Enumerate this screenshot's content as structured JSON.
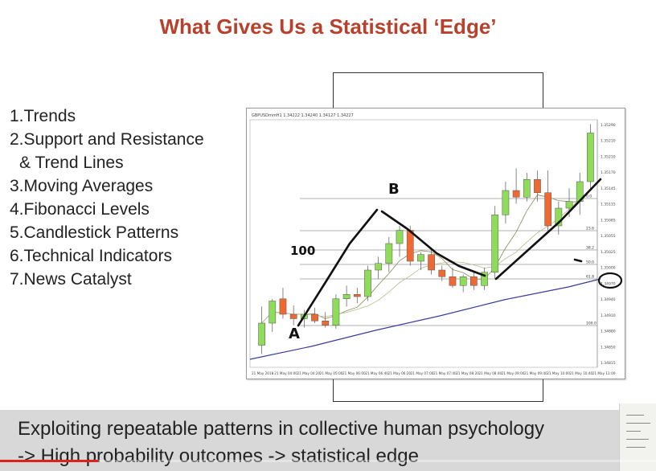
{
  "slide": {
    "title": "What Gives Us a Statistical ‘Edge’",
    "list": [
      {
        "num": "1.",
        "text": "Trends"
      },
      {
        "num": "2.",
        "text": "Support and Resistance"
      },
      {
        "num": "",
        "text": "& Trend Lines"
      },
      {
        "num": "3.",
        "text": "Moving Averages"
      },
      {
        "num": "4.",
        "text": "Fibonacci Levels"
      },
      {
        "num": "5.",
        "text": "Candlestick Patterns"
      },
      {
        "num": "6.",
        "text": "Technical Indicators"
      },
      {
        "num": "7.",
        "text": "News Catalyst"
      }
    ]
  },
  "caption": {
    "line1": "Exploiting repeatable patterns in collective human psychology",
    "line2": "-> High probability outcomes -> statistical edge"
  },
  "video": {
    "progress_percent": 15
  },
  "colors": {
    "title": "#b7412c",
    "bull_candle": "#8fdc5a",
    "bear_candle": "#ef6a33",
    "ma_slow": "#3a3a9e",
    "ma_fast": "#8a8a5a",
    "ink": "#111111",
    "progress": "#e0201b"
  },
  "chart_data": {
    "type": "candlestick",
    "symbol_header": "GBPUSDmmH1 1.34222 1.34240 1.34127 1.34227",
    "price_labels": [
      "1.35290",
      "1.35210",
      "1.35210",
      "1.35170",
      "1.35145",
      "1.35115",
      "1.35085",
      "1.35055",
      "1.35025",
      "1.35000",
      "1.34970",
      "1.34940",
      "1.34910",
      "1.34880",
      "1.34850",
      "1.34815"
    ],
    "fib_labels": [
      "0.0",
      "23.6",
      "38.2",
      "50.0",
      "61.8",
      "100.0"
    ],
    "time_labels": [
      "21 May 2018",
      "21 May 04:00",
      "21 May 04:20",
      "21 May 05:00",
      "21 May 06:00",
      "21 May 06:40",
      "21 May 06:20",
      "21 May 07:00",
      "21 May 07:40",
      "21 May 08:20",
      "21 May 08:40",
      "21 May 09:00",
      "21 May 09:40",
      "21 May 10:00",
      "21 May 10:40",
      "21 May 11:00"
    ],
    "candles": [
      {
        "o": 20,
        "h": 55,
        "l": 12,
        "c": 40
      },
      {
        "o": 40,
        "h": 62,
        "l": 32,
        "c": 60
      },
      {
        "o": 62,
        "h": 72,
        "l": 44,
        "c": 48
      },
      {
        "o": 48,
        "h": 56,
        "l": 38,
        "c": 44
      },
      {
        "o": 44,
        "h": 52,
        "l": 36,
        "c": 48
      },
      {
        "o": 48,
        "h": 54,
        "l": 40,
        "c": 42
      },
      {
        "o": 42,
        "h": 50,
        "l": 36,
        "c": 38
      },
      {
        "o": 38,
        "h": 66,
        "l": 35,
        "c": 62
      },
      {
        "o": 62,
        "h": 74,
        "l": 55,
        "c": 66
      },
      {
        "o": 66,
        "h": 72,
        "l": 58,
        "c": 64
      },
      {
        "o": 64,
        "h": 92,
        "l": 60,
        "c": 88
      },
      {
        "o": 88,
        "h": 100,
        "l": 80,
        "c": 94
      },
      {
        "o": 94,
        "h": 118,
        "l": 86,
        "c": 112
      },
      {
        "o": 112,
        "h": 128,
        "l": 100,
        "c": 124
      },
      {
        "o": 124,
        "h": 128,
        "l": 92,
        "c": 96
      },
      {
        "o": 96,
        "h": 104,
        "l": 88,
        "c": 102
      },
      {
        "o": 102,
        "h": 108,
        "l": 84,
        "c": 88
      },
      {
        "o": 88,
        "h": 92,
        "l": 78,
        "c": 82
      },
      {
        "o": 82,
        "h": 90,
        "l": 72,
        "c": 74
      },
      {
        "o": 74,
        "h": 84,
        "l": 68,
        "c": 82
      },
      {
        "o": 82,
        "h": 86,
        "l": 70,
        "c": 74
      },
      {
        "o": 74,
        "h": 90,
        "l": 70,
        "c": 86
      },
      {
        "o": 86,
        "h": 146,
        "l": 80,
        "c": 138
      },
      {
        "o": 138,
        "h": 168,
        "l": 130,
        "c": 160
      },
      {
        "o": 160,
        "h": 180,
        "l": 148,
        "c": 154
      },
      {
        "o": 154,
        "h": 176,
        "l": 150,
        "c": 170
      },
      {
        "o": 170,
        "h": 178,
        "l": 150,
        "c": 158
      },
      {
        "o": 158,
        "h": 178,
        "l": 124,
        "c": 128
      },
      {
        "o": 128,
        "h": 150,
        "l": 120,
        "c": 144
      },
      {
        "o": 144,
        "h": 162,
        "l": 136,
        "c": 150
      },
      {
        "o": 150,
        "h": 176,
        "l": 138,
        "c": 168
      },
      {
        "o": 168,
        "h": 220,
        "l": 160,
        "c": 212
      }
    ],
    "value_range": [
      0,
      224
    ],
    "fib_levels": [
      0.0,
      23.6,
      38.2,
      50.0,
      61.8,
      100.0
    ],
    "annotations": {
      "label_a": "A",
      "label_b": "B",
      "label_100": "100",
      "mark_dash": "-"
    }
  }
}
